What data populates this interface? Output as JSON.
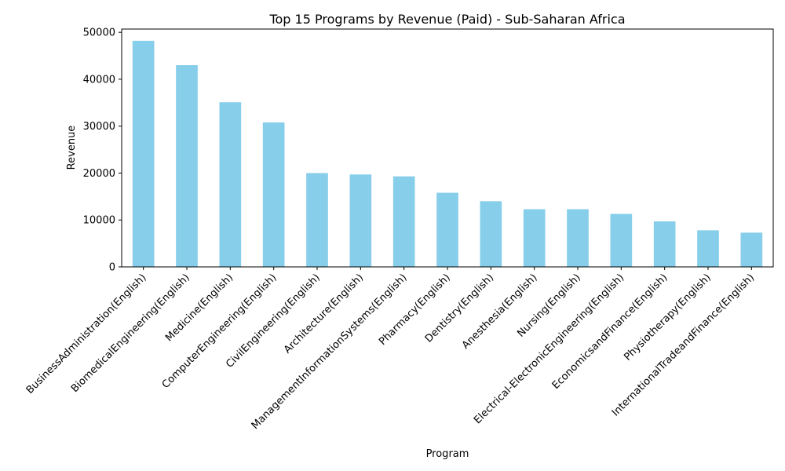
{
  "chart_data": {
    "type": "bar",
    "title": "Top 15 Programs by Revenue (Paid) - Sub-Saharan Africa",
    "xlabel": "Program",
    "ylabel": "Revenue",
    "ylim": [
      0,
      50000
    ],
    "yticks": [
      0,
      10000,
      20000,
      30000,
      40000,
      50000
    ],
    "grid": false,
    "legend": "none",
    "bar_color": "#87ceeb",
    "categories": [
      "BusinessAdministration(English)",
      "BiomedicalEngineering(English)",
      "Medicine(English)",
      "ComputerEngineering(English)",
      "CivilEngineering(English)",
      "Architecture(English)",
      "ManagementInformationSystems(English)",
      "Pharmacy(English)",
      "Dentistry(English)",
      "Anesthesia(English)",
      "Nursing(English)",
      "Electrical-ElectronicEngineering(English)",
      "EconomicsandFinance(English)",
      "Physiotherapy(English)",
      "InternationalTradeandFinance(English)"
    ],
    "values": [
      48200,
      43000,
      35100,
      30800,
      20000,
      19700,
      19300,
      15800,
      14000,
      12300,
      12300,
      11300,
      9700,
      7800,
      7300
    ]
  }
}
